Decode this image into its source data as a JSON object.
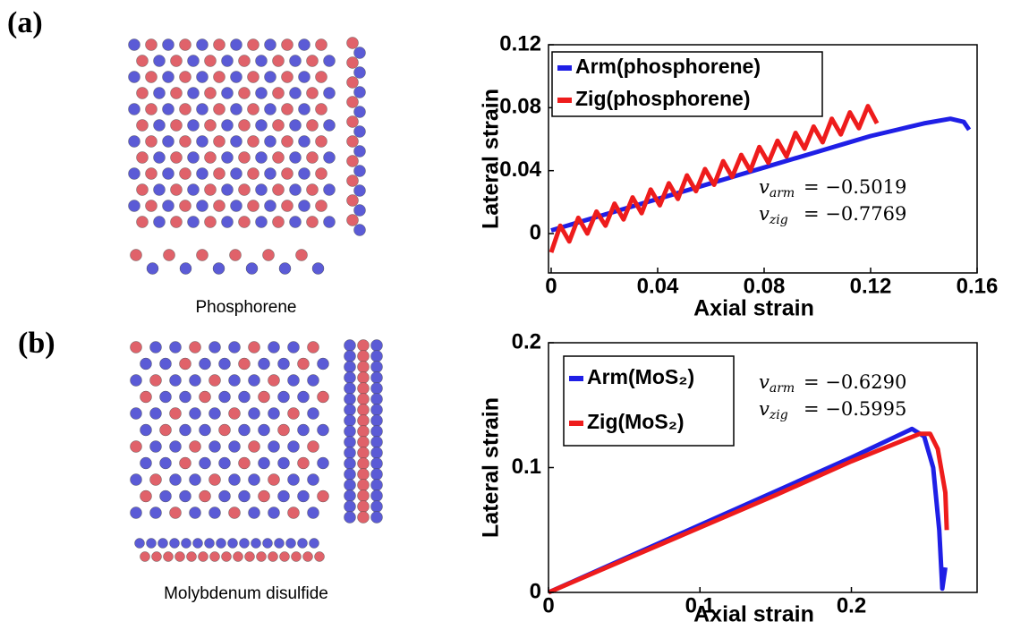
{
  "figure": {
    "panel_labels": [
      "(a)",
      "(b)"
    ],
    "captions": [
      "Phosphorene",
      "Molybdenum disulfide"
    ]
  },
  "chart_data": [
    {
      "type": "line",
      "xlabel": "Axial strain",
      "ylabel": "Lateral strain",
      "xlim": [
        -0.001,
        0.16
      ],
      "ylim": [
        -0.025,
        0.12
      ],
      "xticks": [
        0,
        0.04,
        0.08,
        0.12,
        0.16
      ],
      "yticks": [
        0,
        0.04,
        0.08,
        0.12
      ],
      "legend": "upper left",
      "series": [
        {
          "name": "Arm(phosphorene)",
          "color": "#1f1fe6",
          "x": [
            0,
            0.01,
            0.02,
            0.03,
            0.04,
            0.05,
            0.06,
            0.07,
            0.08,
            0.09,
            0.1,
            0.11,
            0.12,
            0.13,
            0.14,
            0.15,
            0.155,
            0.157
          ],
          "values": [
            0.002,
            0.007,
            0.012,
            0.017,
            0.022,
            0.027,
            0.032,
            0.037,
            0.042,
            0.047,
            0.052,
            0.057,
            0.062,
            0.066,
            0.07,
            0.073,
            0.071,
            0.066
          ]
        },
        {
          "name": "Zig(phosphorene)",
          "color": "#ee1c1c",
          "x": [
            0,
            0.0034,
            0.0068,
            0.0102,
            0.0136,
            0.017,
            0.0204,
            0.0238,
            0.0272,
            0.0306,
            0.034,
            0.0374,
            0.0408,
            0.0442,
            0.0476,
            0.051,
            0.0544,
            0.0578,
            0.0612,
            0.0646,
            0.068,
            0.0714,
            0.0748,
            0.0782,
            0.0816,
            0.085,
            0.0884,
            0.0918,
            0.0952,
            0.0986,
            0.102,
            0.1054,
            0.1088,
            0.1122,
            0.1156,
            0.119,
            0.1224
          ],
          "values": [
            -0.012,
            0.005,
            -0.005,
            0.01,
            0.0,
            0.014,
            0.005,
            0.019,
            0.009,
            0.023,
            0.013,
            0.028,
            0.018,
            0.032,
            0.022,
            0.037,
            0.027,
            0.041,
            0.031,
            0.046,
            0.036,
            0.05,
            0.04,
            0.055,
            0.045,
            0.059,
            0.049,
            0.064,
            0.054,
            0.068,
            0.058,
            0.073,
            0.063,
            0.077,
            0.067,
            0.081,
            0.07
          ]
        }
      ],
      "annotations": [
        {
          "symbol": "v",
          "sub": "arm",
          "text": "= −0.5019"
        },
        {
          "symbol": "v",
          "sub": "zig",
          "text": "= −0.7769"
        }
      ]
    },
    {
      "type": "line",
      "xlabel": "Axial strain",
      "ylabel": "Lateral strain",
      "xlim": [
        0,
        0.283
      ],
      "ylim": [
        0,
        0.2
      ],
      "xticks": [
        0,
        0.1,
        0.2
      ],
      "yticks": [
        0,
        0.1,
        0.2
      ],
      "legend": "upper left",
      "series": [
        {
          "name": "Arm(MoS₂)",
          "color": "#1f1fe6",
          "x": [
            0,
            0.05,
            0.1,
            0.15,
            0.2,
            0.24,
            0.248,
            0.254,
            0.258,
            0.26,
            0.262
          ],
          "values": [
            0,
            0.027,
            0.054,
            0.081,
            0.108,
            0.131,
            0.125,
            0.1,
            0.05,
            0.003,
            0.02
          ]
        },
        {
          "name": "Zig(MoS₂)",
          "color": "#ee1c1c",
          "x": [
            0,
            0.05,
            0.1,
            0.15,
            0.2,
            0.245,
            0.252,
            0.257,
            0.262,
            0.263
          ],
          "values": [
            0,
            0.026,
            0.052,
            0.078,
            0.105,
            0.127,
            0.127,
            0.115,
            0.08,
            0.05
          ]
        }
      ],
      "annotations": [
        {
          "symbol": "v",
          "sub": "arm",
          "text": "= −0.6290"
        },
        {
          "symbol": "v",
          "sub": "zig",
          "text": "= −0.5995"
        }
      ]
    }
  ]
}
